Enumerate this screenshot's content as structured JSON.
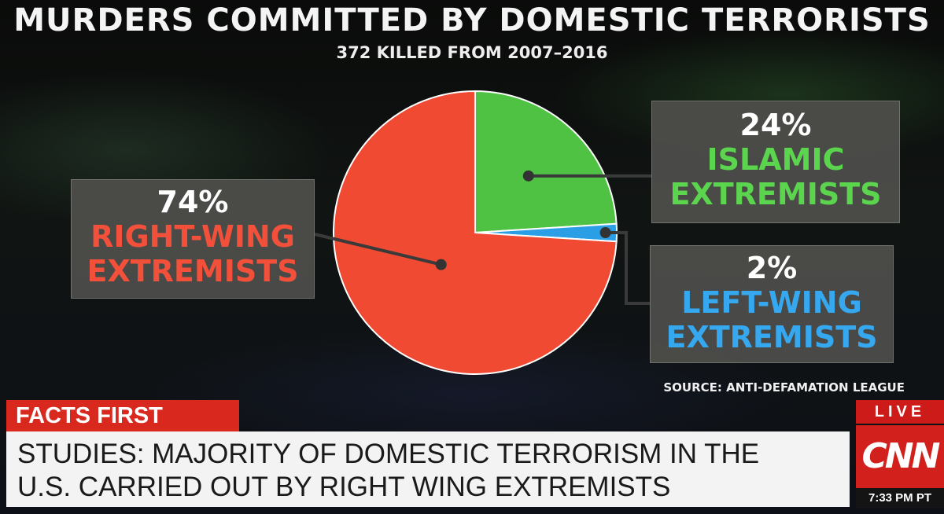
{
  "chart_data": {
    "type": "pie",
    "title": "MURDERS COMMITTED BY DOMESTIC TERRORISTS",
    "subtitle": "372 KILLED FROM 2007–2016",
    "slices": [
      {
        "label_pct": "74%",
        "label_line1": "RIGHT-WING",
        "label_line2": "EXTREMISTS",
        "value": 74,
        "color": "#f04a32"
      },
      {
        "label_pct": "24%",
        "label_line1": "ISLAMIC",
        "label_line2": "EXTREMISTS",
        "value": 24,
        "color": "#4fc244"
      },
      {
        "label_pct": "2%",
        "label_line1": "LEFT-WING",
        "label_line2": "EXTREMISTS",
        "value": 2,
        "color": "#2a9fe6"
      }
    ],
    "source": "SOURCE: ANTI-DEFAMATION LEAGUE"
  },
  "ticker": {
    "facts_label": "FACTS FIRST",
    "headline_line1": "STUDIES: MAJORITY OF DOMESTIC TERRORISM IN THE",
    "headline_line2": "U.S. CARRIED OUT BY RIGHT WING EXTREMISTS",
    "live_label": "LIVE",
    "logo_text": "CNN",
    "time": "7:33 PM PT"
  }
}
